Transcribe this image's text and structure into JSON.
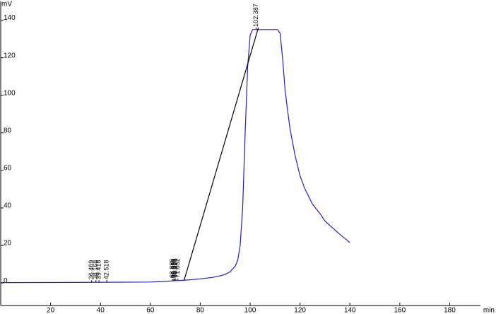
{
  "chart_data": {
    "type": "line",
    "y_unit": "mV",
    "x_unit": "min",
    "x": [
      0,
      30,
      60,
      65,
      70,
      75,
      80,
      85,
      88,
      90,
      92,
      94,
      95,
      96,
      97,
      98,
      99,
      100,
      101,
      104,
      108,
      111,
      112,
      113,
      114,
      115,
      116,
      118,
      120,
      122,
      125,
      128,
      130,
      135,
      140
    ],
    "series": [
      {
        "color": "#2020c8",
        "values": [
          0.2,
          0.3,
          0.5,
          0.8,
          1.2,
          1.6,
          2.2,
          3,
          3.8,
          4.6,
          6,
          9,
          12,
          20,
          40,
          80,
          115,
          132,
          135,
          135,
          135,
          135,
          133,
          120,
          103,
          92,
          82,
          68,
          57,
          50,
          42,
          37,
          33,
          27,
          21.5
        ]
      },
      {
        "color": "#000000",
        "x": [
          73.5,
          103.3
        ],
        "values": [
          1.3,
          136
        ]
      }
    ],
    "peak_labels": [
      36.469,
      38.168,
      39.418,
      42.518,
      68.886,
      69.386,
      69.806,
      70.216,
      71.052,
      102.387
    ],
    "xlim": [
      0,
      198
    ],
    "ylim": [
      -12,
      150
    ],
    "xticks": [
      20,
      40,
      60,
      80,
      100,
      120,
      140,
      160,
      180
    ],
    "yticks": [
      0,
      20,
      40,
      60,
      80,
      100,
      120,
      140
    ],
    "grid": false
  }
}
